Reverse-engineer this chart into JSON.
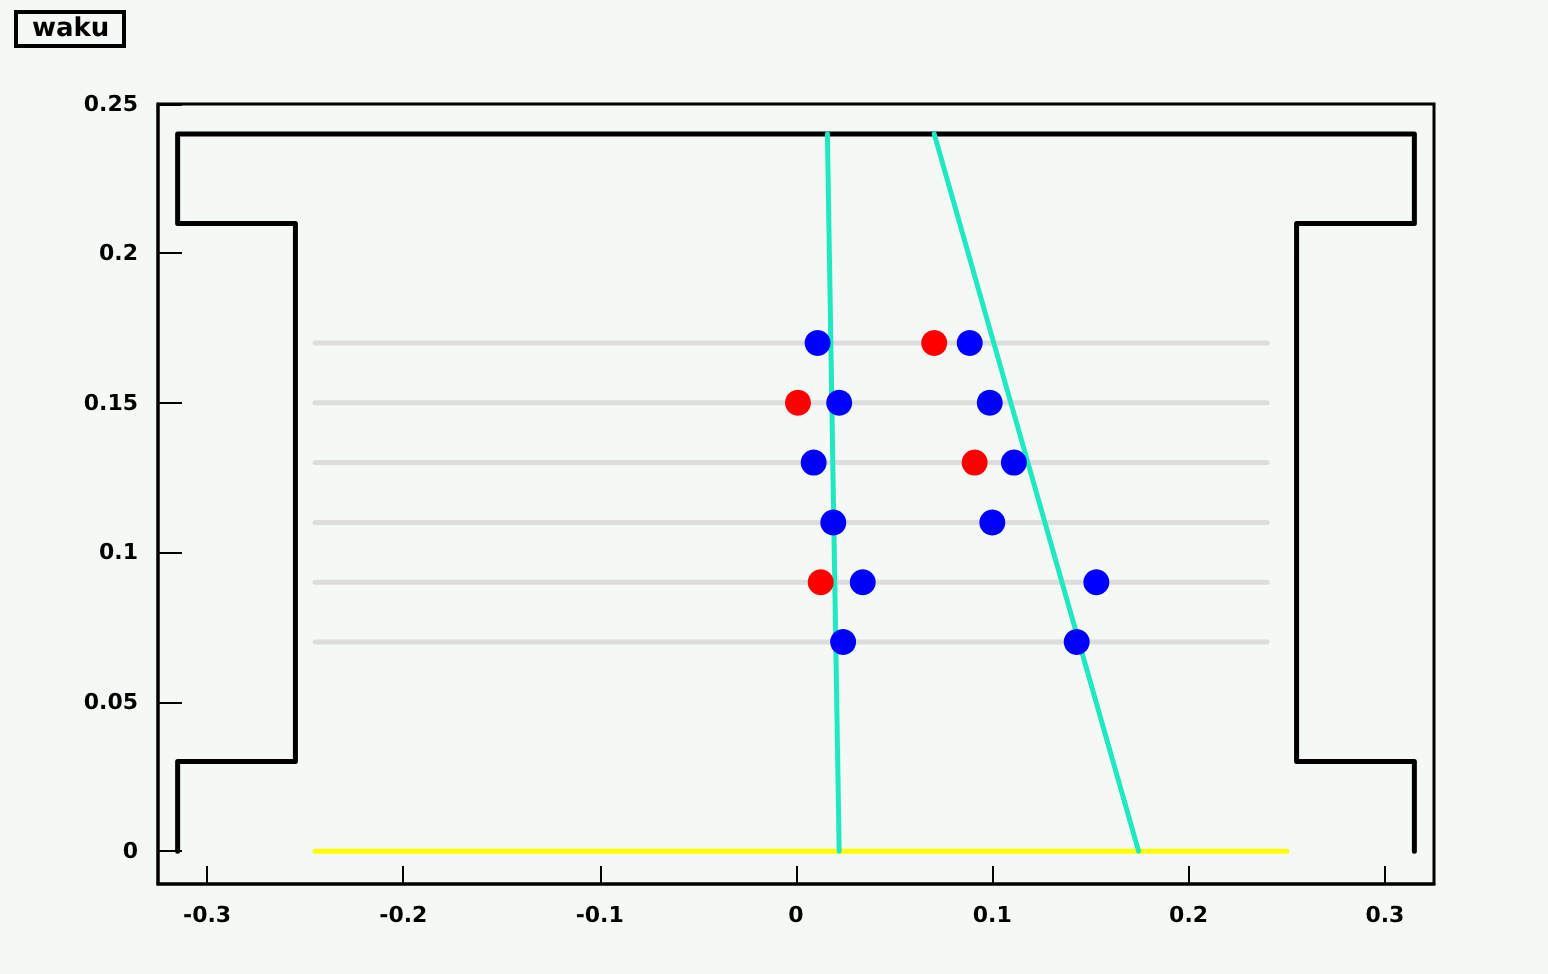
{
  "chart_data": {
    "type": "scatter",
    "title": "waku",
    "xlim": [
      -0.325,
      0.325
    ],
    "xticks": [
      -0.3,
      -0.2,
      -0.1,
      0,
      0.1,
      0.2,
      0.3
    ],
    "ylim": [
      -0.011,
      0.25
    ],
    "yticks": [
      0,
      0.05,
      0.1,
      0.15,
      0.2,
      0.25
    ],
    "grid": false,
    "series": [
      {
        "type": "line",
        "marker": "none",
        "color": "#000000",
        "x": [
          -0.315,
          -0.315,
          -0.255,
          -0.255,
          -0.315,
          -0.315,
          0.315,
          0.315,
          0.255,
          0.255,
          0.315,
          0.315
        ],
        "values": [
          0,
          0.03,
          0.03,
          0.21,
          0.21,
          0.24,
          0.24,
          0.21,
          0.21,
          0.03,
          0.03,
          0
        ]
      },
      {
        "type": "line",
        "marker": "none",
        "color": "#dddddd",
        "x": [
          -0.245,
          0.24
        ],
        "values": [
          0.17,
          0.17
        ]
      },
      {
        "type": "line",
        "marker": "none",
        "color": "#dddddd",
        "x": [
          -0.245,
          0.24
        ],
        "values": [
          0.15,
          0.15
        ]
      },
      {
        "type": "line",
        "marker": "none",
        "color": "#dddddd",
        "x": [
          -0.245,
          0.24
        ],
        "values": [
          0.13,
          0.13
        ]
      },
      {
        "type": "line",
        "marker": "none",
        "color": "#dddddd",
        "x": [
          -0.245,
          0.24
        ],
        "values": [
          0.11,
          0.11
        ]
      },
      {
        "type": "line",
        "marker": "none",
        "color": "#dddddd",
        "x": [
          -0.245,
          0.24
        ],
        "values": [
          0.09,
          0.09
        ]
      },
      {
        "type": "line",
        "marker": "none",
        "color": "#dddddd",
        "x": [
          -0.245,
          0.24
        ],
        "values": [
          0.07,
          0.07
        ]
      },
      {
        "type": "line",
        "marker": "none",
        "color": "#ffff00",
        "x": [
          -0.245,
          0.25
        ],
        "values": [
          0,
          0
        ]
      },
      {
        "type": "line",
        "marker": "none",
        "color": "#20e8c0",
        "x": [
          0.022,
          0.016
        ],
        "values": [
          0,
          0.24
        ]
      },
      {
        "type": "line",
        "marker": "none",
        "color": "#20e8c0",
        "x": [
          0.1745,
          0.0704
        ],
        "values": [
          0,
          0.24
        ]
      },
      {
        "marker": "circle",
        "color": "#0000ff",
        "x": [
          0.011,
          0.022,
          0.009,
          0.019,
          0.034,
          0.024,
          0.0885,
          0.0987,
          0.111,
          0.1,
          0.153,
          0.143
        ],
        "values": [
          0.17,
          0.15,
          0.13,
          0.11,
          0.09,
          0.07,
          0.17,
          0.15,
          0.13,
          0.11,
          0.09,
          0.07
        ]
      },
      {
        "marker": "circle",
        "color": "#ff0000",
        "x": [
          0.0704,
          0.001,
          0.091,
          0.0126
        ],
        "values": [
          0.17,
          0.15,
          0.13,
          0.09
        ]
      }
    ]
  }
}
